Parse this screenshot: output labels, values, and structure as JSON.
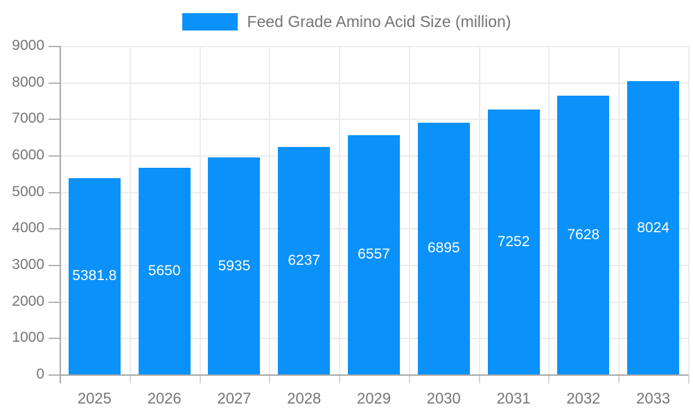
{
  "legend": {
    "label": "Feed Grade Amino Acid Size (million)"
  },
  "colors": {
    "bar": "#0a91fa",
    "grid": "#ececec",
    "axis": "#a9a9a9",
    "tick_text": "#757575",
    "title_text": "#757575",
    "value_label_text": "#ffffff"
  },
  "chart_data": {
    "type": "bar",
    "title": "Feed Grade Amino Acid Size (million)",
    "categories": [
      "2025",
      "2026",
      "2027",
      "2028",
      "2029",
      "2030",
      "2031",
      "2032",
      "2033"
    ],
    "values": [
      5381.8,
      5650,
      5935,
      6237,
      6557,
      6895,
      7252,
      7628,
      8024
    ],
    "value_labels": [
      "5381.8",
      "5650",
      "5935",
      "6237",
      "6557",
      "6895",
      "7252",
      "7628",
      "8024"
    ],
    "xlabel": "",
    "ylabel": "",
    "ylim": [
      0,
      9000
    ],
    "ytick_interval": 1000,
    "ytick_labels": [
      "0",
      "1000",
      "2000",
      "3000",
      "4000",
      "5000",
      "6000",
      "7000",
      "8000",
      "9000"
    ],
    "grid": true,
    "legend_position": "top-center",
    "value_label_position": "bar-center"
  }
}
